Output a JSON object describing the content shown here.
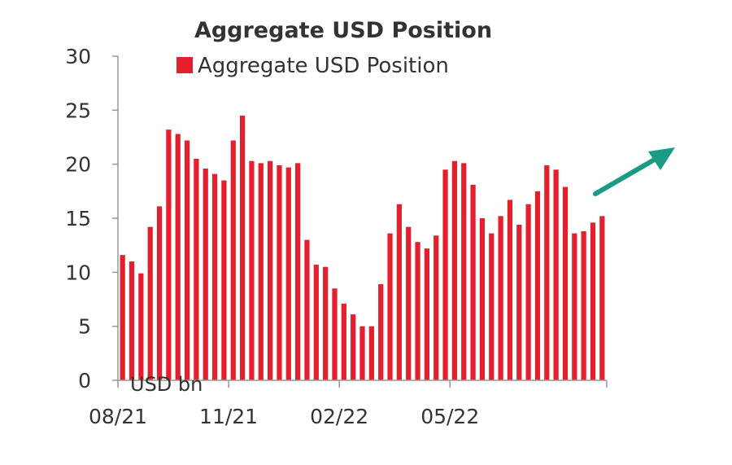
{
  "chart_data": {
    "type": "bar",
    "title": "Aggregate USD Position",
    "ylabel": "USD bn",
    "ylim": [
      0,
      30
    ],
    "yticks": [
      "0",
      "5",
      "10",
      "15",
      "20",
      "25",
      "30"
    ],
    "xtick_labels": [
      {
        "label": "08/21",
        "index": 0
      },
      {
        "label": "11/21",
        "index": 12
      },
      {
        "label": "02/22",
        "index": 24
      },
      {
        "label": "05/22",
        "index": 36
      }
    ],
    "grid": false,
    "legend": {
      "position": "top",
      "entries": [
        "Aggregate USD Position"
      ]
    },
    "series": [
      {
        "name": "Aggregate USD Position",
        "color": "#e5202e",
        "values": [
          11.6,
          11.0,
          9.9,
          14.2,
          16.1,
          23.2,
          22.8,
          22.2,
          20.5,
          19.6,
          19.1,
          18.5,
          22.2,
          24.5,
          20.3,
          20.1,
          20.3,
          19.9,
          19.7,
          20.1,
          13.0,
          10.7,
          10.5,
          8.5,
          7.1,
          6.1,
          5.0,
          5.0,
          8.9,
          13.6,
          16.3,
          14.2,
          12.8,
          12.2,
          13.4,
          19.5,
          20.3,
          20.1,
          18.1,
          15.0,
          13.6,
          15.2,
          16.7,
          14.4,
          16.3,
          17.5,
          19.9,
          19.5,
          17.9,
          13.6,
          13.8,
          14.6,
          15.2
        ]
      }
    ],
    "annotations": [
      {
        "type": "arrow",
        "direction": "up-right",
        "color": "#1a9b84"
      }
    ]
  }
}
